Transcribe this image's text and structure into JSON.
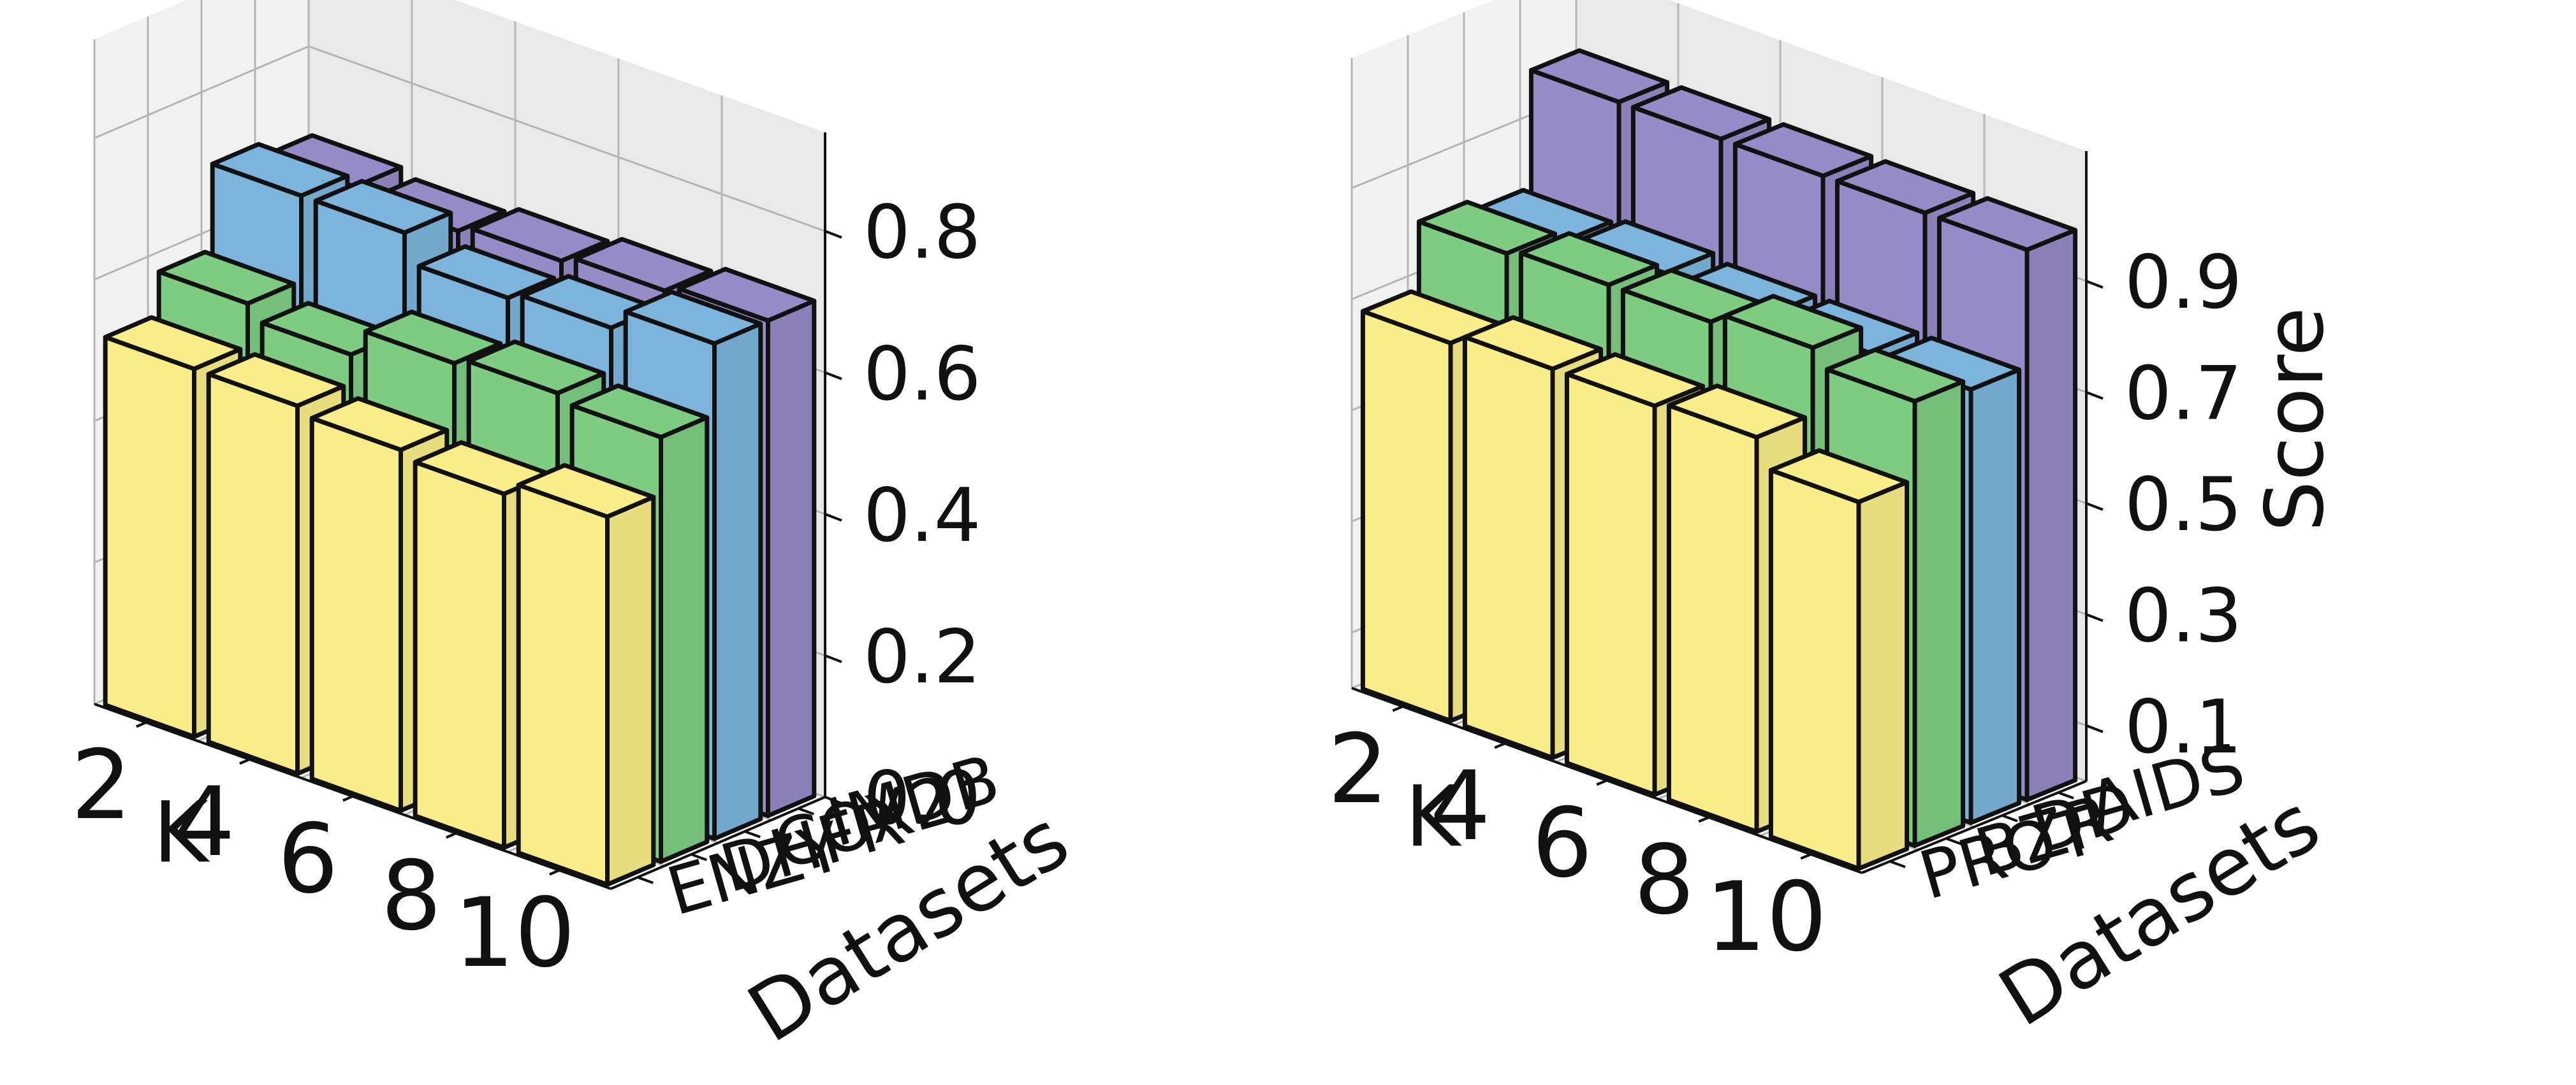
{
  "colors": {
    "series": [
      "#f8ed88",
      "#7ecc82",
      "#7db4db",
      "#958bc6"
    ],
    "edge": "#111111",
    "pane_left": "#f1f1f1",
    "pane_back": "#e9e9e9",
    "pane_floor": "#f5f5f5",
    "grid": "#b5b5b5"
  },
  "chart_data": [
    {
      "type": "bar3d",
      "xlabel": "K",
      "ylabel": "Datasets",
      "zlabel": "",
      "k_values": [
        "2",
        "4",
        "6",
        "8",
        "10"
      ],
      "datasets": [
        "ENZY",
        "DHFR",
        "COX2",
        "IMDB"
      ],
      "z_ticks": [
        "0.0",
        "0.2",
        "0.4",
        "0.6",
        "0.8"
      ],
      "zlim": [
        0,
        0.87
      ],
      "grid": true,
      "series": [
        {
          "dataset": "ENZY",
          "values": [
            0.52,
            0.52,
            0.51,
            0.5,
            0.52
          ]
        },
        {
          "dataset": "DHFR",
          "values": [
            0.58,
            0.56,
            0.6,
            0.61,
            0.6
          ]
        },
        {
          "dataset": "COX2",
          "values": [
            0.7,
            0.7,
            0.66,
            0.67,
            0.7
          ]
        },
        {
          "dataset": "IMDB",
          "values": [
            0.68,
            0.67,
            0.68,
            0.69,
            0.7
          ]
        }
      ]
    },
    {
      "type": "bar3d",
      "xlabel": "K",
      "ylabel": "Datasets",
      "zlabel": "Score",
      "k_values": [
        "2",
        "4",
        "6",
        "8",
        "10"
      ],
      "datasets": [
        "PROT",
        "BZR",
        "DD",
        "AIDS"
      ],
      "z_ticks": [
        "0.1",
        "0.3",
        "0.5",
        "0.7",
        "0.9"
      ],
      "zlim": [
        0,
        1.05
      ],
      "grid": true,
      "series": [
        {
          "dataset": "PROT",
          "values": [
            0.68,
            0.7,
            0.7,
            0.71,
            0.66
          ]
        },
        {
          "dataset": "BZR",
          "values": [
            0.8,
            0.81,
            0.81,
            0.83,
            0.8
          ]
        },
        {
          "dataset": "DD",
          "values": [
            0.78,
            0.79,
            0.78,
            0.78,
            0.78
          ]
        },
        {
          "dataset": "AIDS",
          "values": [
            0.99,
            0.99,
            0.99,
            0.99,
            0.99
          ]
        }
      ]
    }
  ]
}
